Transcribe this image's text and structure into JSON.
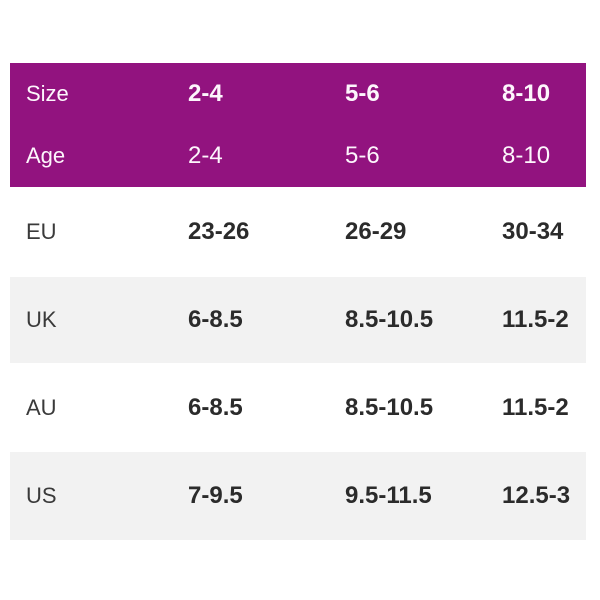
{
  "colors": {
    "accent_purple": "#92137F",
    "band_gray": "#f2f2f2",
    "value_text": "#2b2b2b",
    "label_text": "#3a3a3a",
    "header_text": "#ffffff"
  },
  "chart_data": {
    "type": "table",
    "title": "",
    "header_rows": [
      {
        "label": "Size",
        "values": [
          "2-4",
          "5-6",
          "8-10"
        ]
      },
      {
        "label": "Age",
        "values": [
          "2-4",
          "5-6",
          "8-10"
        ]
      }
    ],
    "rows": [
      {
        "label": "EU",
        "values": [
          "23-26",
          "26-29",
          "30-34"
        ]
      },
      {
        "label": "UK",
        "values": [
          "6-8.5",
          "8.5-10.5",
          "11.5-2"
        ]
      },
      {
        "label": "AU",
        "values": [
          "6-8.5",
          "8.5-10.5",
          "11.5-2"
        ]
      },
      {
        "label": "US",
        "values": [
          "7-9.5",
          "9.5-11.5",
          "12.5-3"
        ]
      }
    ]
  }
}
